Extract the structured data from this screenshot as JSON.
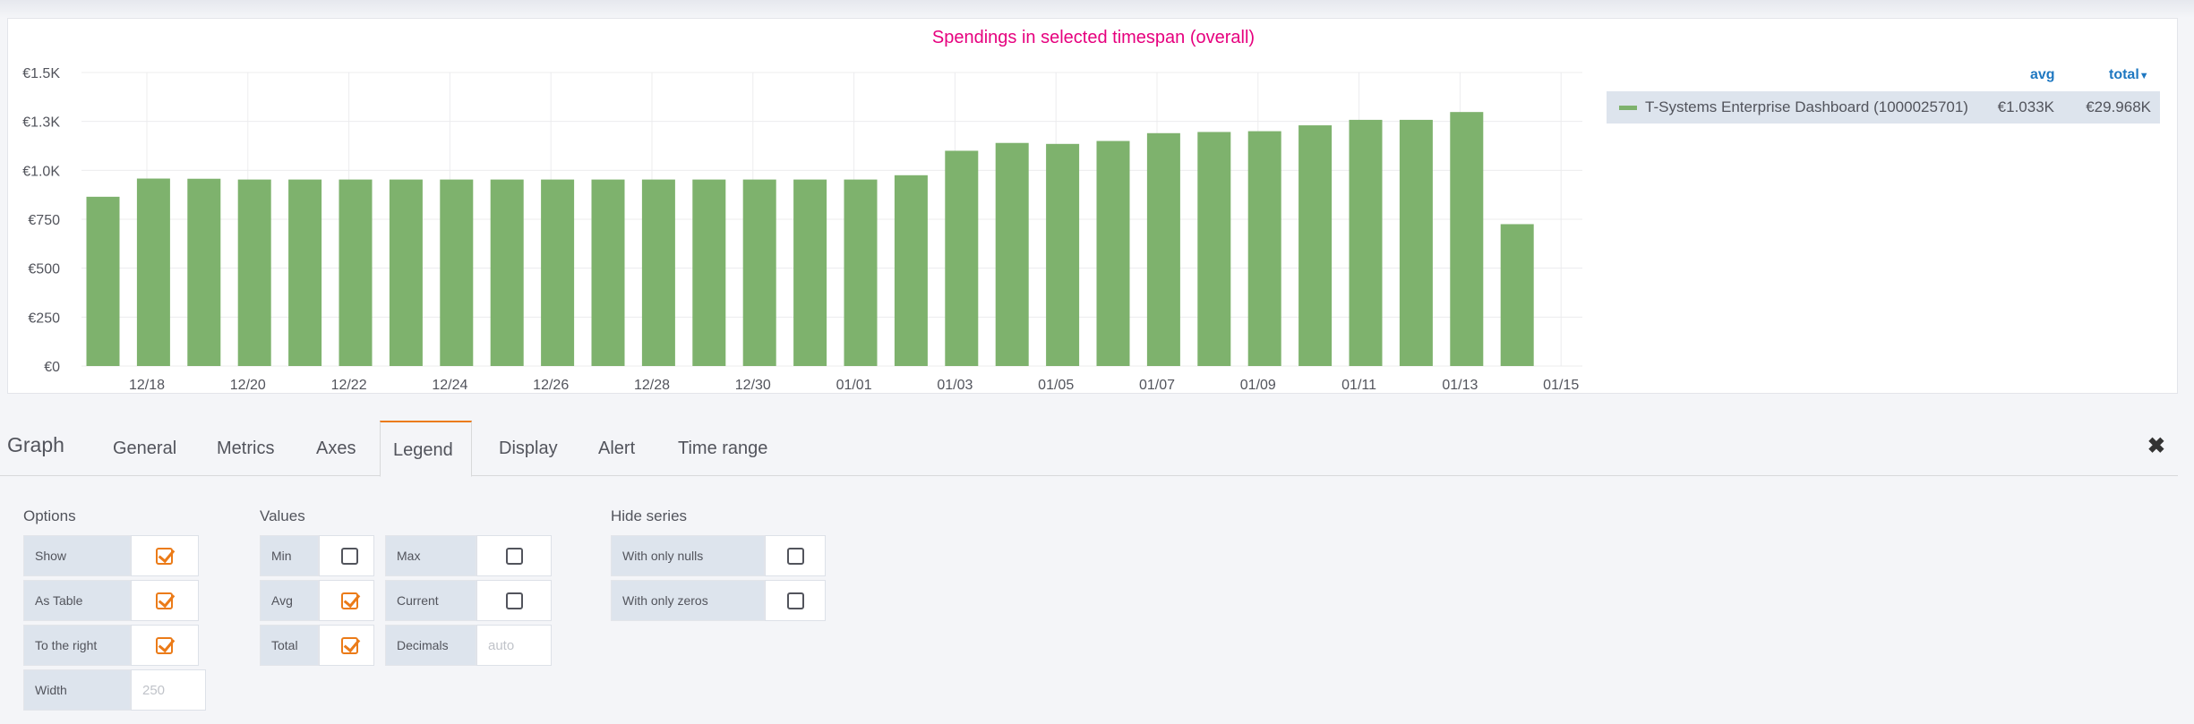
{
  "panel": {
    "title": "Spendings in selected timespan (overall)"
  },
  "chart_data": {
    "type": "bar",
    "title": "Spendings in selected timespan (overall)",
    "series_name": "T-Systems Enterprise Dashboard (1000025701)",
    "color": "#7eb26d",
    "y_ticks": [
      "€0",
      "€250",
      "€500",
      "€750",
      "€1.0K",
      "€1.3K",
      "€1.5K"
    ],
    "ylim": [
      0,
      1500
    ],
    "x_ticks": [
      "12/18",
      "12/20",
      "12/22",
      "12/24",
      "12/26",
      "12/28",
      "12/30",
      "01/01",
      "01/03",
      "01/05",
      "01/07",
      "01/09",
      "01/11",
      "01/13",
      "01/15"
    ],
    "categories": [
      "12/17",
      "12/18",
      "12/19",
      "12/20",
      "12/21",
      "12/22",
      "12/23",
      "12/24",
      "12/25",
      "12/26",
      "12/27",
      "12/28",
      "12/29",
      "12/30",
      "12/31",
      "01/01",
      "01/02",
      "01/03",
      "01/04",
      "01/05",
      "01/06",
      "01/07",
      "01/08",
      "01/09",
      "01/10",
      "01/11",
      "01/12",
      "01/13",
      "01/14"
    ],
    "values": [
      865,
      958,
      957,
      953,
      953,
      953,
      953,
      953,
      953,
      953,
      953,
      953,
      953,
      953,
      953,
      953,
      975,
      1100,
      1140,
      1135,
      1150,
      1190,
      1196,
      1200,
      1230,
      1258,
      1258,
      1298,
      725
    ],
    "grid": true,
    "legend_position": "right"
  },
  "legend": {
    "col_avg": "avg",
    "col_total": "total",
    "sort_icon": "caret-down-icon",
    "series": [
      {
        "name": "T-Systems Enterprise Dashboard (1000025701)",
        "avg": "€1.033K",
        "total": "€29.968K",
        "color": "#7eb26d"
      }
    ]
  },
  "editor": {
    "title": "Graph",
    "tabs": [
      "General",
      "Metrics",
      "Axes",
      "Legend",
      "Display",
      "Alert",
      "Time range"
    ],
    "active_tab": "Legend",
    "close_icon": "close-icon"
  },
  "options": {
    "title": "Options",
    "show": {
      "label": "Show",
      "checked": true
    },
    "as_table": {
      "label": "As Table",
      "checked": true
    },
    "to_right": {
      "label": "To the right",
      "checked": true
    },
    "width": {
      "label": "Width",
      "placeholder": "250"
    }
  },
  "values": {
    "title": "Values",
    "min": {
      "label": "Min",
      "checked": false
    },
    "max": {
      "label": "Max",
      "checked": false
    },
    "avg": {
      "label": "Avg",
      "checked": true
    },
    "current": {
      "label": "Current",
      "checked": false
    },
    "total": {
      "label": "Total",
      "checked": true
    },
    "decimals": {
      "label": "Decimals",
      "placeholder": "auto"
    }
  },
  "hide_series": {
    "title": "Hide series",
    "only_nulls": {
      "label": "With only nulls",
      "checked": false
    },
    "only_zeros": {
      "label": "With only zeros",
      "checked": false
    }
  },
  "colors": {
    "accent": "#eb7b18",
    "title": "#e6007e",
    "legend_header": "#1f78c1"
  }
}
